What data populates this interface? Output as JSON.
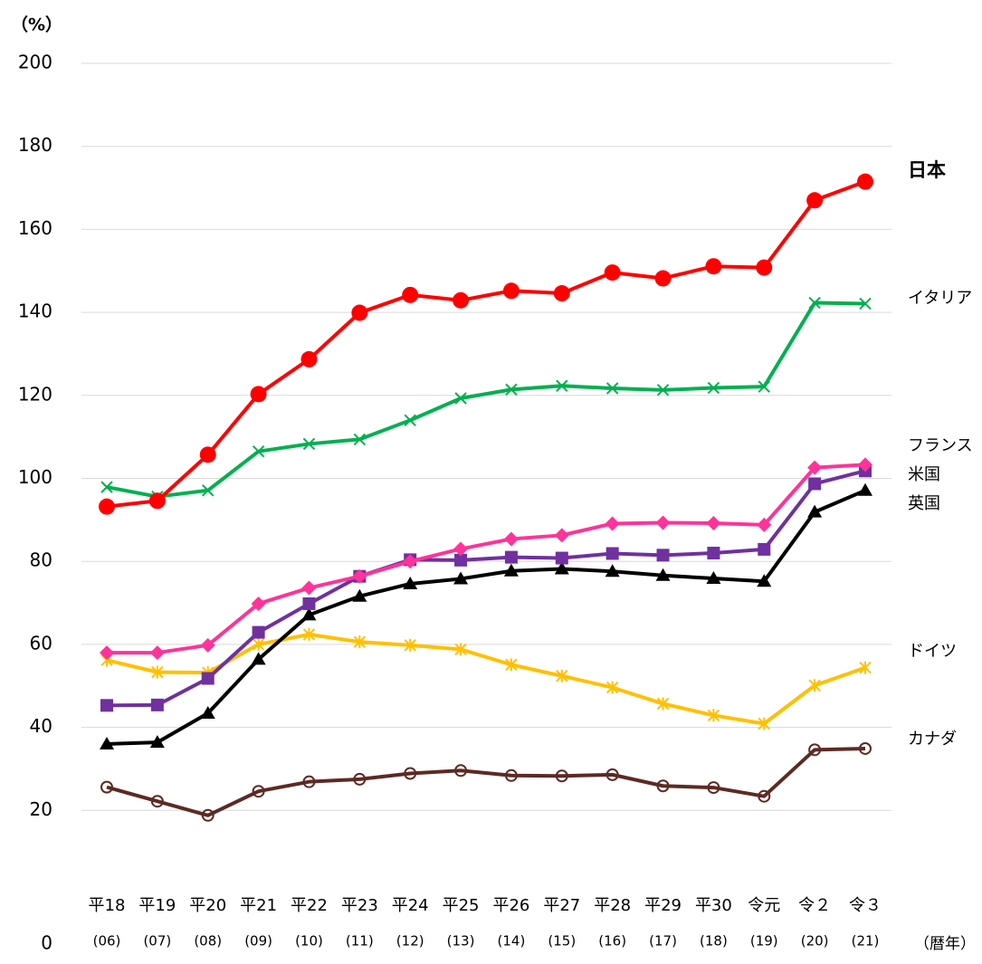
{
  "chart_data": {
    "type": "line",
    "y_unit": "（%）",
    "x_unit": "（暦年）",
    "categories": [
      "平18",
      "平19",
      "平20",
      "平21",
      "平22",
      "平23",
      "平24",
      "平25",
      "平26",
      "平27",
      "平28",
      "平29",
      "平30",
      "令元",
      "令２",
      "令３"
    ],
    "category_years": [
      "(06)",
      "(07)",
      "(08)",
      "(09)",
      "(10)",
      "(11)",
      "(12)",
      "(13)",
      "(14)",
      "(15)",
      "(16)",
      "(17)",
      "(18)",
      "(19)",
      "(20)",
      "(21)"
    ],
    "ylim": [
      0,
      200
    ],
    "yticks": [
      0,
      20,
      40,
      60,
      80,
      100,
      120,
      140,
      160,
      180,
      200
    ],
    "grid": true,
    "series": [
      {
        "name": "日本",
        "color": "#ff0000",
        "marker": "circle",
        "values": [
          93.2,
          94.6,
          105.7,
          120.3,
          128.7,
          139.9,
          144.2,
          142.9,
          145.2,
          144.6,
          149.6,
          148.2,
          151.1,
          150.8,
          167.0,
          171.5
        ]
      },
      {
        "name": "イタリア",
        "color": "#00b050",
        "marker": "x",
        "values": [
          97.9,
          95.6,
          97.1,
          106.5,
          108.3,
          109.4,
          114.0,
          119.3,
          121.4,
          122.3,
          121.7,
          121.3,
          121.8,
          122.1,
          142.3,
          142.1
        ]
      },
      {
        "name": "フランス",
        "color": "#ff3399",
        "marker": "diamond",
        "values": [
          58.0,
          58.0,
          59.8,
          69.8,
          73.6,
          76.4,
          80.0,
          83.0,
          85.4,
          86.3,
          89.1,
          89.3,
          89.2,
          88.8,
          102.6,
          103.3
        ]
      },
      {
        "name": "米国",
        "color": "#7030a0",
        "marker": "square",
        "values": [
          45.3,
          45.4,
          51.8,
          62.9,
          69.8,
          76.4,
          80.4,
          80.3,
          81.0,
          80.8,
          81.9,
          81.5,
          82.0,
          82.9,
          98.7,
          101.8
        ]
      },
      {
        "name": "英国",
        "color": "#000000",
        "marker": "triangle",
        "values": [
          36.0,
          36.4,
          43.4,
          56.4,
          67.1,
          71.6,
          74.6,
          75.8,
          77.7,
          78.2,
          77.6,
          76.6,
          75.9,
          75.2,
          91.9,
          97.1
        ]
      },
      {
        "name": "ドイツ",
        "color": "#ffc000",
        "marker": "asterisk",
        "values": [
          56.2,
          53.3,
          53.2,
          60.0,
          62.4,
          60.6,
          59.8,
          58.8,
          55.1,
          52.4,
          49.6,
          45.7,
          42.9,
          40.9,
          50.1,
          54.4
        ]
      },
      {
        "name": "カナダ",
        "color": "#5c2a24",
        "marker": "open-circle",
        "label_color": "#8b5a1a",
        "values": [
          25.6,
          22.2,
          18.8,
          24.6,
          26.9,
          27.5,
          28.9,
          29.6,
          28.4,
          28.3,
          28.6,
          25.9,
          25.5,
          23.4,
          34.6,
          34.9
        ]
      }
    ]
  }
}
